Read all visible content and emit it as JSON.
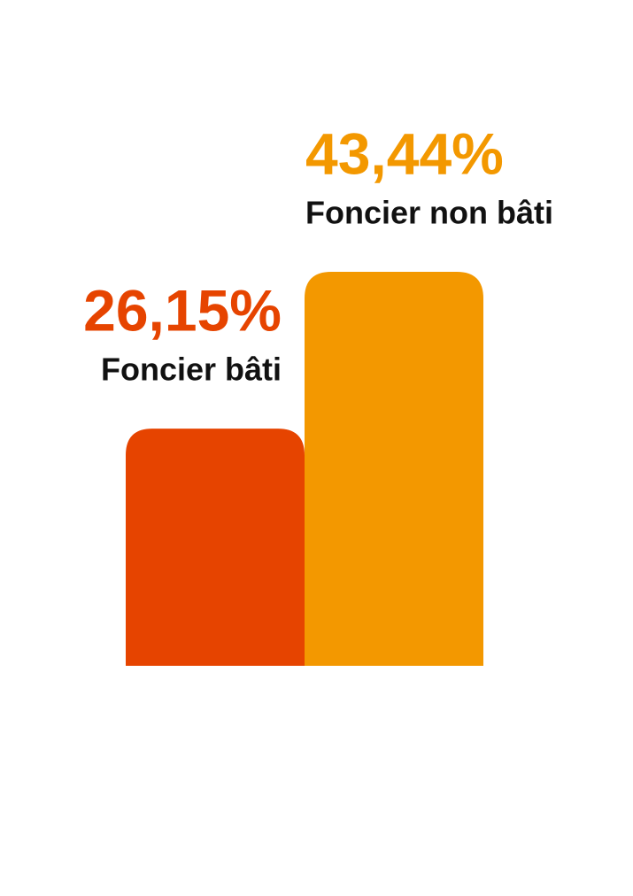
{
  "chart_data": {
    "type": "bar",
    "categories": [
      "Foncier bâti",
      "Foncier non bâti"
    ],
    "values": [
      26.15,
      43.44
    ],
    "value_labels": [
      "26,15%",
      "43,44%"
    ],
    "colors": [
      "#e64400",
      "#f39800"
    ]
  }
}
